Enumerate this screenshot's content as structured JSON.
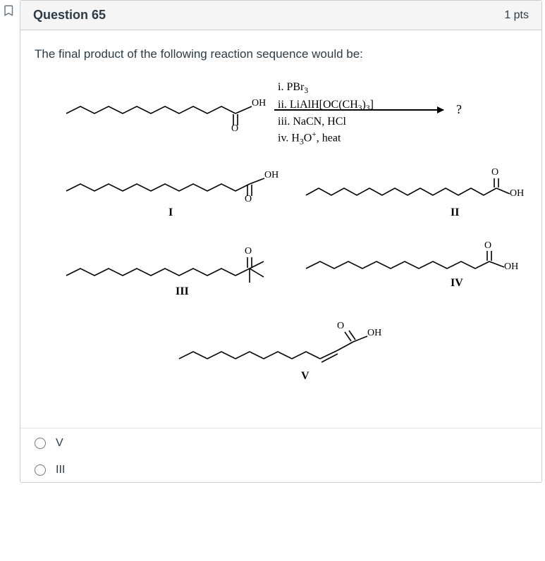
{
  "header": {
    "question_label": "Question 65",
    "points_label": "1 pts"
  },
  "stem": "The final product of the following reaction sequence would be:",
  "reaction": {
    "steps_html": "i. PBr<sub>3</sub><br>ii. LiAlH[OC(CH<sub>3</sub>)<sub>3</sub>]<br>iii. NaCN, HCl<br>iv. H<sub>3</sub>O<sup>+</sup>, heat",
    "question_mark": "?"
  },
  "labels": {
    "I": "I",
    "II": "II",
    "III": "III",
    "IV": "IV",
    "V": "V",
    "OH": "OH",
    "O": "O"
  },
  "options": [
    {
      "label": "V"
    },
    {
      "label": "III"
    }
  ],
  "style": {
    "header_bg": "#f5f5f5",
    "border_color": "#c7cdd1",
    "text_color": "#2d3b45",
    "chem_color": "#000000",
    "stroke_width": 1.6
  }
}
